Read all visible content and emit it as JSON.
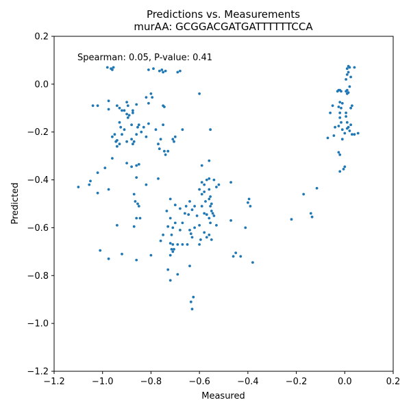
{
  "chart_data": {
    "type": "scatter",
    "title": "Predictions vs. Measurements",
    "subtitle": "murAA: GCGGACGATGATTTTTTCCA",
    "xlabel": "Measured",
    "ylabel": "Predicted",
    "xlim": [
      -1.2,
      0.2
    ],
    "ylim": [
      -1.2,
      0.2
    ],
    "xticks": [
      -1.2,
      -1.0,
      -0.8,
      -0.6,
      -0.4,
      -0.2,
      0.0,
      0.2
    ],
    "yticks": [
      -1.2,
      -1.0,
      -0.8,
      -0.6,
      -0.4,
      -0.2,
      0.0,
      0.2
    ],
    "xtick_labels": [
      "−1.2",
      "−1.0",
      "−0.8",
      "−0.6",
      "−0.4",
      "−0.2",
      "0.0",
      "0.2"
    ],
    "ytick_labels": [
      "−1.2",
      "−1.0",
      "−0.8",
      "−0.6",
      "−0.4",
      "−0.2",
      "0.0",
      "0.2"
    ],
    "annotation": "Spearman: 0.05, P-value: 0.41",
    "grid": false,
    "marker_color": "#1f77b4",
    "points": [
      [
        -0.98,
        0.07
      ],
      [
        -0.96,
        0.06
      ],
      [
        -0.955,
        0.07
      ],
      [
        -0.965,
        0.065
      ],
      [
        -0.81,
        0.06
      ],
      [
        -0.79,
        0.065
      ],
      [
        -0.765,
        0.055
      ],
      [
        -0.755,
        0.06
      ],
      [
        -0.75,
        0.05
      ],
      [
        -0.74,
        0.055
      ],
      [
        -0.69,
        0.05
      ],
      [
        -0.68,
        0.055
      ],
      [
        -0.975,
        -0.07
      ],
      [
        -0.975,
        -0.105
      ],
      [
        -1.04,
        -0.09
      ],
      [
        -1.02,
        -0.09
      ],
      [
        -0.94,
        -0.09
      ],
      [
        -0.93,
        -0.1
      ],
      [
        -0.92,
        -0.11
      ],
      [
        -0.91,
        -0.11
      ],
      [
        -0.9,
        -0.075
      ],
      [
        -0.895,
        -0.09
      ],
      [
        -0.875,
        -0.11
      ],
      [
        -0.86,
        -0.085
      ],
      [
        -0.93,
        -0.16
      ],
      [
        -0.925,
        -0.18
      ],
      [
        -0.92,
        -0.21
      ],
      [
        -0.91,
        -0.19
      ],
      [
        -0.9,
        -0.125
      ],
      [
        -0.895,
        -0.14
      ],
      [
        -0.89,
        -0.13
      ],
      [
        -0.88,
        -0.17
      ],
      [
        -0.875,
        -0.12
      ],
      [
        -0.96,
        -0.22
      ],
      [
        -0.95,
        -0.21
      ],
      [
        -0.945,
        -0.24
      ],
      [
        -0.94,
        -0.235
      ],
      [
        -0.93,
        -0.25
      ],
      [
        -0.94,
        -0.26
      ],
      [
        -0.96,
        -0.31
      ],
      [
        -0.9,
        -0.24
      ],
      [
        -0.88,
        -0.23
      ],
      [
        -0.875,
        -0.25
      ],
      [
        -0.87,
        -0.24
      ],
      [
        -0.86,
        -0.21
      ],
      [
        -0.855,
        -0.18
      ],
      [
        -0.85,
        -0.17
      ],
      [
        -0.84,
        -0.2
      ],
      [
        -0.82,
        -0.055
      ],
      [
        -0.81,
        -0.08
      ],
      [
        -0.8,
        -0.04
      ],
      [
        -0.795,
        -0.055
      ],
      [
        -0.75,
        -0.09
      ],
      [
        -0.745,
        -0.095
      ],
      [
        -0.83,
        -0.18
      ],
      [
        -0.82,
        -0.22
      ],
      [
        -0.81,
        -0.165
      ],
      [
        -0.78,
        -0.19
      ],
      [
        -0.77,
        -0.25
      ],
      [
        -0.765,
        -0.27
      ],
      [
        -0.76,
        -0.23
      ],
      [
        -0.75,
        -0.17
      ],
      [
        -0.745,
        -0.28
      ],
      [
        -0.74,
        -0.295
      ],
      [
        -0.73,
        -0.28
      ],
      [
        -0.71,
        -0.23
      ],
      [
        -0.705,
        -0.24
      ],
      [
        -0.7,
        -0.22
      ],
      [
        -0.67,
        -0.19
      ],
      [
        -0.6,
        -0.04
      ],
      [
        -0.555,
        -0.19
      ],
      [
        -0.9,
        -0.33
      ],
      [
        -0.88,
        -0.345
      ],
      [
        -0.86,
        -0.34
      ],
      [
        -0.85,
        -0.335
      ],
      [
        -0.82,
        -0.42
      ],
      [
        -0.77,
        -0.395
      ],
      [
        -0.86,
        -0.39
      ],
      [
        -0.99,
        -0.35
      ],
      [
        -1.02,
        -0.37
      ],
      [
        -1.05,
        -0.405
      ],
      [
        -1.055,
        -0.42
      ],
      [
        -1.1,
        -0.43
      ],
      [
        -1.02,
        -0.455
      ],
      [
        -0.975,
        -0.44
      ],
      [
        -0.87,
        -0.46
      ],
      [
        -0.865,
        -0.49
      ],
      [
        -0.855,
        -0.5
      ],
      [
        -0.85,
        -0.51
      ],
      [
        -0.845,
        -0.56
      ],
      [
        -0.86,
        -0.56
      ],
      [
        -0.87,
        -0.595
      ],
      [
        -0.94,
        -0.59
      ],
      [
        -0.59,
        -0.34
      ],
      [
        -0.59,
        -0.41
      ],
      [
        -0.58,
        -0.42
      ],
      [
        -0.57,
        -0.4
      ],
      [
        -0.56,
        -0.395
      ],
      [
        -0.56,
        -0.32
      ],
      [
        -0.56,
        -0.44
      ],
      [
        -0.555,
        -0.47
      ],
      [
        -0.54,
        -0.4
      ],
      [
        -0.53,
        -0.43
      ],
      [
        -0.52,
        -0.42
      ],
      [
        -0.47,
        -0.41
      ],
      [
        -0.4,
        -0.495
      ],
      [
        -0.395,
        -0.48
      ],
      [
        -0.39,
        -0.51
      ],
      [
        -0.6,
        -0.44
      ],
      [
        -0.59,
        -0.46
      ],
      [
        -0.58,
        -0.45
      ],
      [
        -0.575,
        -0.49
      ],
      [
        -0.56,
        -0.48
      ],
      [
        -0.555,
        -0.51
      ],
      [
        -0.55,
        -0.53
      ],
      [
        -0.545,
        -0.54
      ],
      [
        -0.54,
        -0.55
      ],
      [
        -0.59,
        -0.51
      ],
      [
        -0.58,
        -0.54
      ],
      [
        -0.57,
        -0.545
      ],
      [
        -0.56,
        -0.56
      ],
      [
        -0.555,
        -0.58
      ],
      [
        -0.55,
        -0.5
      ],
      [
        -0.53,
        -0.59
      ],
      [
        -0.47,
        -0.57
      ],
      [
        -0.41,
        -0.6
      ],
      [
        -0.72,
        -0.48
      ],
      [
        -0.7,
        -0.505
      ],
      [
        -0.68,
        -0.52
      ],
      [
        -0.66,
        -0.54
      ],
      [
        -0.655,
        -0.51
      ],
      [
        -0.645,
        -0.545
      ],
      [
        -0.64,
        -0.49
      ],
      [
        -0.63,
        -0.525
      ],
      [
        -0.62,
        -0.51
      ],
      [
        -0.61,
        -0.55
      ],
      [
        -0.735,
        -0.53
      ],
      [
        -0.72,
        -0.56
      ],
      [
        -0.73,
        -0.595
      ],
      [
        -0.71,
        -0.6
      ],
      [
        -0.715,
        -0.63
      ],
      [
        -0.7,
        -0.58
      ],
      [
        -0.68,
        -0.61
      ],
      [
        -0.67,
        -0.58
      ],
      [
        -0.64,
        -0.61
      ],
      [
        -0.635,
        -0.625
      ],
      [
        -0.63,
        -0.64
      ],
      [
        -0.62,
        -0.6
      ],
      [
        -0.6,
        -0.59
      ],
      [
        -0.58,
        -0.62
      ],
      [
        -0.57,
        -0.64
      ],
      [
        -0.56,
        -0.63
      ],
      [
        -0.55,
        -0.65
      ],
      [
        -0.76,
        -0.655
      ],
      [
        -0.75,
        -0.63
      ],
      [
        -0.72,
        -0.665
      ],
      [
        -0.71,
        -0.67
      ],
      [
        -0.69,
        -0.67
      ],
      [
        -0.67,
        -0.67
      ],
      [
        -0.65,
        -0.67
      ],
      [
        -0.6,
        -0.67
      ],
      [
        -0.595,
        -0.65
      ],
      [
        -0.715,
        -0.69
      ],
      [
        -0.71,
        -0.7
      ],
      [
        -0.705,
        -0.69
      ],
      [
        -0.72,
        -0.715
      ],
      [
        -0.46,
        -0.72
      ],
      [
        -0.45,
        -0.705
      ],
      [
        -0.43,
        -0.72
      ],
      [
        -0.38,
        -0.745
      ],
      [
        -1.01,
        -0.695
      ],
      [
        -0.975,
        -0.73
      ],
      [
        -0.92,
        -0.71
      ],
      [
        -0.86,
        -0.735
      ],
      [
        -0.8,
        -0.715
      ],
      [
        -0.73,
        -0.775
      ],
      [
        -0.72,
        -0.82
      ],
      [
        -0.69,
        -0.795
      ],
      [
        -0.64,
        -0.76
      ],
      [
        -0.635,
        -0.91
      ],
      [
        -0.625,
        -0.89
      ],
      [
        -0.63,
        -0.94
      ],
      [
        -0.22,
        -0.565
      ],
      [
        -0.17,
        -0.46
      ],
      [
        -0.14,
        -0.54
      ],
      [
        -0.135,
        -0.555
      ],
      [
        -0.115,
        -0.435
      ],
      [
        -0.07,
        -0.225
      ],
      [
        -0.06,
        -0.12
      ],
      [
        -0.05,
        -0.09
      ],
      [
        -0.045,
        -0.215
      ],
      [
        -0.04,
        -0.18
      ],
      [
        -0.03,
        -0.03
      ],
      [
        -0.025,
        -0.025
      ],
      [
        -0.02,
        -0.025
      ],
      [
        -0.015,
        -0.03
      ],
      [
        -0.02,
        -0.12
      ],
      [
        -0.025,
        -0.095
      ],
      [
        -0.02,
        -0.075
      ],
      [
        -0.015,
        -0.1
      ],
      [
        -0.01,
        -0.08
      ],
      [
        -0.02,
        -0.14
      ],
      [
        -0.025,
        -0.175
      ],
      [
        -0.015,
        -0.16
      ],
      [
        -0.01,
        -0.19
      ],
      [
        -0.025,
        -0.285
      ],
      [
        -0.02,
        -0.295
      ],
      [
        -0.02,
        -0.365
      ],
      [
        -0.01,
        -0.23
      ],
      [
        -0.005,
        -0.355
      ],
      [
        0.0,
        -0.345
      ],
      [
        0.0,
        -0.205
      ],
      [
        0.005,
        -0.03
      ],
      [
        0.01,
        -0.025
      ],
      [
        0.01,
        -0.04
      ],
      [
        0.015,
        -0.035
      ],
      [
        0.005,
        0.02
      ],
      [
        0.01,
        0.04
      ],
      [
        0.015,
        0.05
      ],
      [
        0.01,
        0.065
      ],
      [
        0.015,
        0.075
      ],
      [
        0.02,
        0.07
      ],
      [
        0.02,
        -0.01
      ],
      [
        0.025,
        0.03
      ],
      [
        0.04,
        0.07
      ],
      [
        0.03,
        -0.09
      ],
      [
        0.025,
        -0.1
      ],
      [
        0.005,
        -0.12
      ],
      [
        0.01,
        -0.16
      ],
      [
        0.015,
        -0.18
      ],
      [
        0.02,
        -0.195
      ],
      [
        0.025,
        -0.17
      ],
      [
        0.03,
        -0.21
      ],
      [
        0.01,
        -0.185
      ],
      [
        0.005,
        -0.135
      ],
      [
        0.04,
        -0.21
      ],
      [
        0.055,
        -0.205
      ]
    ]
  }
}
